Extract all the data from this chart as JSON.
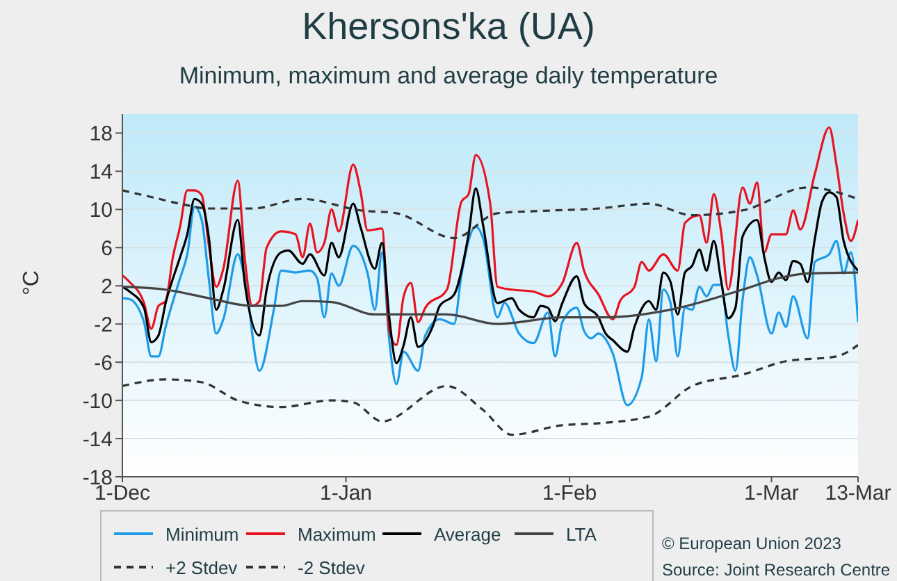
{
  "chart_data": {
    "type": "line",
    "title": "Khersons'ka (UA)",
    "subtitle": "Minimum, maximum and average daily temperature",
    "ylabel": "°C",
    "xlim": [
      "2022-12-01",
      "2023-03-13"
    ],
    "xticks": [
      {
        "value": "2022-12-01",
        "label": "1-Dec"
      },
      {
        "value": "2023-01-01",
        "label": "1-Jan"
      },
      {
        "value": "2023-02-01",
        "label": "1-Feb"
      },
      {
        "value": "2023-03-01",
        "label": "1-Mar"
      },
      {
        "value": "2023-03-13",
        "label": "13-Mar"
      }
    ],
    "ylim": [
      -18,
      20
    ],
    "yticks": [
      -18,
      -14,
      -10,
      -6,
      -2,
      2,
      6,
      10,
      14,
      18
    ],
    "grid": "y",
    "legend": "bottom",
    "annotations": [
      "© European Union 2023",
      "Source: Joint Research Centre"
    ],
    "series": [
      {
        "name": "Minimum",
        "color": "#1e9be8",
        "line_style": "solid",
        "x": [
          "2022-12-01",
          "2022-12-02",
          "2022-12-04",
          "2022-12-05",
          "2022-12-06",
          "2022-12-07",
          "2022-12-09",
          "2022-12-10",
          "2022-12-11",
          "2022-12-12",
          "2022-12-13",
          "2022-12-14",
          "2022-12-15",
          "2022-12-17",
          "2022-12-18",
          "2022-12-20",
          "2022-12-22",
          "2022-12-23",
          "2022-12-25",
          "2022-12-27",
          "2022-12-28",
          "2022-12-29",
          "2022-12-30",
          "2022-12-31",
          "2023-01-02",
          "2023-01-04",
          "2023-01-05",
          "2023-01-06",
          "2023-01-07",
          "2023-01-08",
          "2023-01-09",
          "2023-01-11",
          "2023-01-12",
          "2023-01-14",
          "2023-01-16",
          "2023-01-17",
          "2023-01-19",
          "2023-01-20",
          "2023-01-22",
          "2023-01-23",
          "2023-01-25",
          "2023-01-27",
          "2023-01-29",
          "2023-01-30",
          "2023-01-31",
          "2023-02-02",
          "2023-02-03",
          "2023-02-04",
          "2023-02-05",
          "2023-02-07",
          "2023-02-09",
          "2023-02-11",
          "2023-02-12",
          "2023-02-13",
          "2023-02-14",
          "2023-02-15",
          "2023-02-16",
          "2023-02-17",
          "2023-02-18",
          "2023-02-19",
          "2023-02-20",
          "2023-02-21",
          "2023-02-22",
          "2023-02-23",
          "2023-02-24",
          "2023-02-25",
          "2023-02-26",
          "2023-02-27",
          "2023-03-01",
          "2023-03-02",
          "2023-03-03",
          "2023-03-04",
          "2023-03-06",
          "2023-03-07",
          "2023-03-09",
          "2023-03-10",
          "2023-03-11",
          "2023-03-12",
          "2023-03-13"
        ],
        "values": [
          0.7,
          0.6,
          -1.8,
          -5.4,
          -5.4,
          -2.3,
          2.8,
          5.3,
          10.3,
          8.9,
          2.6,
          -3,
          -1.5,
          5.3,
          2.6,
          -6.9,
          -0.5,
          3.6,
          3.4,
          3.6,
          2.8,
          -1.3,
          3.3,
          2,
          6.2,
          3.3,
          -0.5,
          5.5,
          -3.7,
          -8.3,
          -4.9,
          -6.9,
          -3.2,
          -1.5,
          -2,
          3.1,
          8.2,
          7,
          -1.3,
          0.2,
          -3,
          -4,
          -0.8,
          -5.4,
          -1.8,
          -0.3,
          -2.7,
          -3.5,
          -3,
          -5.1,
          -10.5,
          -7.6,
          -1.5,
          -5.9,
          1.6,
          0.2,
          -5.4,
          -0.3,
          -0.5,
          1.9,
          0.9,
          2.1,
          2.1,
          -3.2,
          -6.9,
          0.6,
          5,
          3.1,
          -3,
          -0.8,
          -2.3,
          0.9,
          -3.5,
          4.5,
          5.3,
          6.7,
          3.3,
          5.5,
          -1.8
        ]
      },
      {
        "name": "Maximum",
        "color": "#e8131f",
        "line_style": "solid",
        "x": [
          "2022-12-01",
          "2022-12-02",
          "2022-12-04",
          "2022-12-05",
          "2022-12-06",
          "2022-12-07",
          "2022-12-08",
          "2022-12-09",
          "2022-12-10",
          "2022-12-11",
          "2022-12-12",
          "2022-12-13",
          "2022-12-14",
          "2022-12-15",
          "2022-12-17",
          "2022-12-18",
          "2022-12-19",
          "2022-12-20",
          "2022-12-21",
          "2022-12-23",
          "2022-12-25",
          "2022-12-26",
          "2022-12-27",
          "2022-12-28",
          "2022-12-29",
          "2022-12-30",
          "2022-12-31",
          "2023-01-02",
          "2023-01-03",
          "2023-01-04",
          "2023-01-06",
          "2023-01-07",
          "2023-01-08",
          "2023-01-09",
          "2023-01-10",
          "2023-01-11",
          "2023-01-12",
          "2023-01-15",
          "2023-01-17",
          "2023-01-18",
          "2023-01-19",
          "2023-01-21",
          "2023-01-22",
          "2023-01-24",
          "2023-01-27",
          "2023-01-29",
          "2023-01-31",
          "2023-02-02",
          "2023-02-03",
          "2023-02-05",
          "2023-02-07",
          "2023-02-08",
          "2023-02-10",
          "2023-02-11",
          "2023-02-12",
          "2023-02-14",
          "2023-02-16",
          "2023-02-17",
          "2023-02-19",
          "2023-02-20",
          "2023-02-21",
          "2023-02-22",
          "2023-02-23",
          "2023-02-25",
          "2023-02-26",
          "2023-02-27",
          "2023-02-28",
          "2023-03-01",
          "2023-03-03",
          "2023-03-04",
          "2023-03-05",
          "2023-03-07",
          "2023-03-09",
          "2023-03-10",
          "2023-03-11",
          "2023-03-12",
          "2023-03-13"
        ],
        "values": [
          3.1,
          2.4,
          0.2,
          -2.5,
          -0.1,
          0.4,
          5,
          8.2,
          12,
          12,
          11.5,
          6.2,
          1.9,
          3.8,
          13,
          4.6,
          -0.1,
          0.4,
          6,
          7.7,
          7.4,
          5,
          8.5,
          5.5,
          6.5,
          10,
          7.7,
          14.7,
          12,
          7.8,
          8,
          -2.7,
          -4.2,
          0.9,
          2.3,
          -1.8,
          -0.3,
          1.6,
          10.8,
          11.6,
          15.7,
          10.6,
          1.9,
          1.6,
          1.4,
          0.9,
          2.3,
          6.5,
          3.6,
          1.1,
          -1.5,
          0.4,
          1.9,
          4.5,
          3.6,
          5.3,
          3.6,
          8.6,
          9.4,
          6.5,
          11.6,
          7.7,
          1.6,
          12.3,
          10.6,
          12.8,
          5.5,
          7.4,
          7.4,
          9.9,
          7.9,
          13.7,
          18.6,
          14.7,
          9.6,
          6.7,
          8.9
        ]
      },
      {
        "name": "Average",
        "color": "#000000",
        "line_style": "solid",
        "x": [
          "2022-12-01",
          "2022-12-02",
          "2022-12-04",
          "2022-12-05",
          "2022-12-06",
          "2022-12-07",
          "2022-12-09",
          "2022-12-10",
          "2022-12-11",
          "2022-12-12",
          "2022-12-13",
          "2022-12-14",
          "2022-12-15",
          "2022-12-17",
          "2022-12-18",
          "2022-12-20",
          "2022-12-21",
          "2022-12-23",
          "2022-12-24",
          "2022-12-26",
          "2022-12-27",
          "2022-12-29",
          "2022-12-30",
          "2022-12-31",
          "2023-01-02",
          "2023-01-03",
          "2023-01-05",
          "2023-01-06",
          "2023-01-07",
          "2023-01-08",
          "2023-01-09",
          "2023-01-10",
          "2023-01-11",
          "2023-01-13",
          "2023-01-14",
          "2023-01-16",
          "2023-01-18",
          "2023-01-19",
          "2023-01-20",
          "2023-01-22",
          "2023-01-24",
          "2023-01-25",
          "2023-01-27",
          "2023-01-28",
          "2023-01-29",
          "2023-01-30",
          "2023-01-31",
          "2023-02-02",
          "2023-02-03",
          "2023-02-05",
          "2023-02-06",
          "2023-02-07",
          "2023-02-09",
          "2023-02-10",
          "2023-02-12",
          "2023-02-13",
          "2023-02-14",
          "2023-02-15",
          "2023-02-16",
          "2023-02-17",
          "2023-02-18",
          "2023-02-19",
          "2023-02-20",
          "2023-02-21",
          "2023-02-22",
          "2023-02-23",
          "2023-02-24",
          "2023-02-25",
          "2023-02-27",
          "2023-02-28",
          "2023-03-01",
          "2023-03-02",
          "2023-03-03",
          "2023-03-04",
          "2023-03-05",
          "2023-03-06",
          "2023-03-07",
          "2023-03-08",
          "2023-03-09",
          "2023-03-10",
          "2023-03-11",
          "2023-03-13"
        ],
        "values": [
          1.9,
          1.4,
          -0.3,
          -3.9,
          -3.2,
          0.2,
          5,
          7.4,
          11.1,
          10.6,
          7,
          -0.5,
          1.6,
          8.9,
          2.1,
          -3.2,
          1.6,
          5.5,
          5.7,
          4.3,
          5.3,
          3.1,
          6.5,
          5,
          10.6,
          8.2,
          3.8,
          6.5,
          -1.3,
          -6.1,
          -4.2,
          -1.3,
          -4.4,
          -2.3,
          -0.1,
          1.1,
          7.4,
          12.2,
          8.4,
          0.2,
          0.7,
          -0.5,
          -1.3,
          -0.1,
          -0.3,
          -1.7,
          0.2,
          3,
          0.2,
          -1.3,
          -3,
          -3.7,
          -4.9,
          -2.3,
          0.4,
          -0.5,
          3.4,
          2.4,
          -1,
          3.4,
          4.1,
          5.8,
          3.6,
          6.7,
          2.6,
          -1.4,
          -0.3,
          7.2,
          8.9,
          5,
          2.4,
          3.4,
          2.6,
          4.6,
          4.3,
          2.4,
          6.9,
          10.8,
          11.8,
          11.3,
          6.7,
          3.6
        ]
      },
      {
        "name": "LTA",
        "color": "#444444",
        "line_style": "solid",
        "x": [
          "2022-12-01",
          "2022-12-07",
          "2022-12-13",
          "2022-12-19",
          "2022-12-23",
          "2022-12-26",
          "2022-12-30",
          "2023-01-05",
          "2023-01-15",
          "2023-01-22",
          "2023-01-31",
          "2023-02-06",
          "2023-02-15",
          "2023-02-25",
          "2023-03-02",
          "2023-03-06",
          "2023-03-13"
        ],
        "values": [
          1.9,
          1.6,
          0.7,
          -0.1,
          -0.1,
          0.4,
          0.3,
          -1,
          -1,
          -2,
          -1.3,
          -1.3,
          -0.5,
          1.6,
          2.8,
          3.3,
          3.4
        ]
      },
      {
        "name": "+2 Stdev",
        "color": "#333333",
        "line_style": "dashed",
        "x": [
          "2022-12-01",
          "2022-12-05",
          "2022-12-09",
          "2022-12-13",
          "2022-12-19",
          "2022-12-26",
          "2023-01-03",
          "2023-01-08",
          "2023-01-16",
          "2023-01-22",
          "2023-01-30",
          "2023-02-05",
          "2023-02-12",
          "2023-02-18",
          "2023-02-25",
          "2023-03-06",
          "2023-03-13"
        ],
        "values": [
          12,
          11.3,
          10.6,
          10.1,
          10.1,
          11.1,
          9.9,
          9.6,
          7,
          9.6,
          9.9,
          10.1,
          10.6,
          9.4,
          9.9,
          12.3,
          11.1
        ]
      },
      {
        "name": "-2 Stdev",
        "color": "#333333",
        "line_style": "dashed",
        "x": [
          "2022-12-01",
          "2022-12-07",
          "2022-12-12",
          "2022-12-17",
          "2022-12-23",
          "2022-12-30",
          "2023-01-02",
          "2023-01-06",
          "2023-01-15",
          "2023-01-20",
          "2023-01-24",
          "2023-01-31",
          "2023-02-05",
          "2023-02-12",
          "2023-02-18",
          "2023-02-25",
          "2023-03-03",
          "2023-03-10",
          "2023-03-13"
        ],
        "values": [
          -8.5,
          -7.8,
          -8.1,
          -10,
          -10.7,
          -10,
          -10.2,
          -12.2,
          -8.5,
          -11,
          -13.6,
          -12.6,
          -12.4,
          -11.7,
          -8.5,
          -7.3,
          -5.9,
          -5.4,
          -4.2
        ]
      }
    ]
  }
}
